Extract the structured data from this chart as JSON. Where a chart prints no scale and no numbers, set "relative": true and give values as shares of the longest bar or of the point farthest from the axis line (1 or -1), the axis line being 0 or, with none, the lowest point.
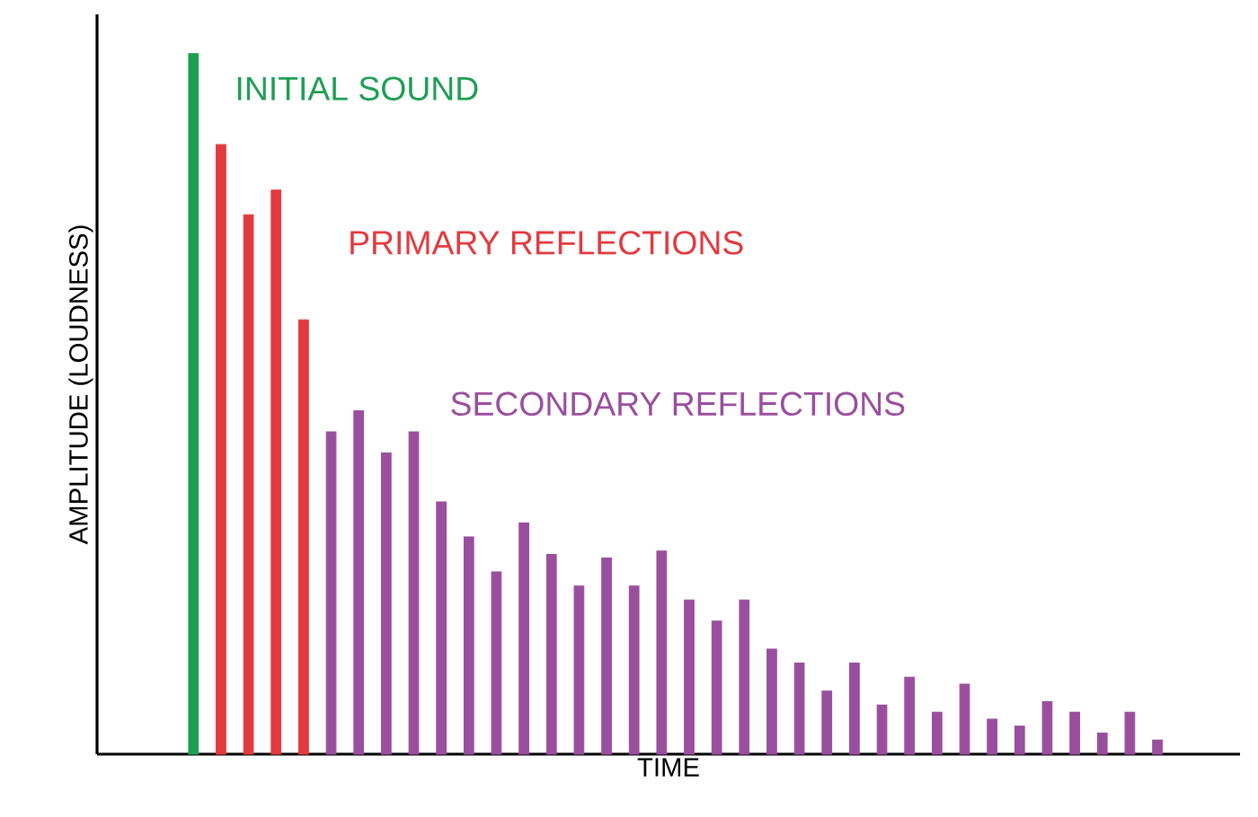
{
  "chart_data": {
    "type": "bar",
    "relative": true,
    "xlabel": "TIME",
    "ylabel": "AMPLITUDE (LOUDNESS)",
    "categories": [
      null,
      null,
      null,
      null,
      null,
      null,
      null,
      null,
      null,
      null,
      null,
      null,
      null,
      null,
      null,
      null,
      null,
      null,
      null,
      null,
      null,
      null,
      null,
      null,
      null,
      null,
      null,
      null,
      null,
      null,
      null,
      null,
      null,
      null,
      null,
      null
    ],
    "values": [
      1,
      0.87,
      0.77,
      0.805,
      0.62,
      0.46,
      0.49,
      0.43,
      0.46,
      0.36,
      0.31,
      0.26,
      0.33,
      0.285,
      0.24,
      0.28,
      0.24,
      0.29,
      0.22,
      0.19,
      0.22,
      0.15,
      0.13,
      0.09,
      0.13,
      0.07,
      0.11,
      0.06,
      0.1,
      0.05,
      0.04,
      0.075,
      0.06,
      0.03,
      0.06,
      0.02
    ],
    "colors": [
      "#1f9e55",
      "#e23a3f",
      "#e23a3f",
      "#e23a3f",
      "#e23a3f",
      "#9a4f9e",
      "#9a4f9e",
      "#9a4f9e",
      "#9a4f9e",
      "#9a4f9e",
      "#9a4f9e",
      "#9a4f9e",
      "#9a4f9e",
      "#9a4f9e",
      "#9a4f9e",
      "#9a4f9e",
      "#9a4f9e",
      "#9a4f9e",
      "#9a4f9e",
      "#9a4f9e",
      "#9a4f9e",
      "#9a4f9e",
      "#9a4f9e",
      "#9a4f9e",
      "#9a4f9e",
      "#9a4f9e",
      "#9a4f9e",
      "#9a4f9e",
      "#9a4f9e",
      "#9a4f9e",
      "#9a4f9e",
      "#9a4f9e",
      "#9a4f9e",
      "#9a4f9e",
      "#9a4f9e",
      "#9a4f9e"
    ],
    "annotations": [
      "INITIAL SOUND",
      "PRIMARY REFLECTIONS",
      "SECONDARY REFLECTIONS"
    ]
  }
}
